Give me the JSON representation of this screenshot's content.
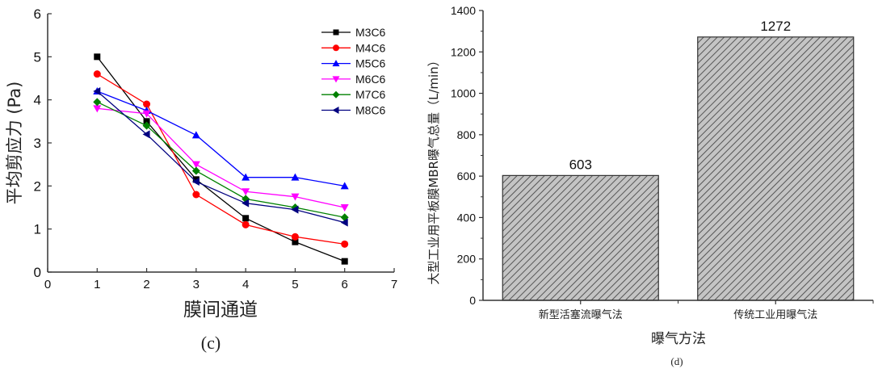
{
  "chart_data": [
    {
      "type": "line",
      "panel_label": "(c)",
      "title": "",
      "xlabel": "膜间通道",
      "ylabel": "平均剪应力 (Pa)",
      "xlim": [
        0,
        7
      ],
      "ylim": [
        0,
        6
      ],
      "xticks": [
        "0",
        "1",
        "2",
        "3",
        "4",
        "5",
        "6",
        "7"
      ],
      "yticks": [
        "0",
        "1",
        "2",
        "3",
        "4",
        "5",
        "6"
      ],
      "grid": false,
      "legend_position": "top-right",
      "x": [
        1,
        2,
        3,
        4,
        5,
        6
      ],
      "series": [
        {
          "name": "M3C6",
          "color": "#000000",
          "marker": "square",
          "values": [
            5.0,
            3.5,
            2.15,
            1.25,
            0.7,
            0.25
          ]
        },
        {
          "name": "M4C6",
          "color": "#ff0000",
          "marker": "circle",
          "values": [
            4.6,
            3.9,
            1.8,
            1.1,
            0.82,
            0.65
          ]
        },
        {
          "name": "M5C6",
          "color": "#0000ff",
          "marker": "triangle-up",
          "values": [
            4.2,
            3.75,
            3.18,
            2.2,
            2.2,
            2.0
          ]
        },
        {
          "name": "M6C6",
          "color": "#ff00ff",
          "marker": "triangle-down",
          "values": [
            3.8,
            3.68,
            2.5,
            1.87,
            1.75,
            1.5
          ]
        },
        {
          "name": "M7C6",
          "color": "#008000",
          "marker": "diamond",
          "values": [
            3.95,
            3.4,
            2.35,
            1.7,
            1.5,
            1.27
          ]
        },
        {
          "name": "M8C6",
          "color": "#000080",
          "marker": "triangle-left",
          "values": [
            4.2,
            3.2,
            2.1,
            1.6,
            1.45,
            1.15
          ]
        }
      ]
    },
    {
      "type": "bar",
      "panel_label": "(d)",
      "title": "",
      "xlabel": "曝气方法",
      "ylabel": "大型工业用平板膜MBR曝气总量（L/min）",
      "categories": [
        "新型活塞流曝气法",
        "传统工业用曝气法"
      ],
      "values": [
        603,
        1272
      ],
      "data_labels": [
        "603",
        "1272"
      ],
      "ylim": [
        0,
        1400
      ],
      "yticks": [
        "0",
        "200",
        "400",
        "600",
        "800",
        "1000",
        "1200",
        "1400"
      ],
      "grid": false,
      "bar_fill": "hatched-gray",
      "bar_color": "#b0b0b0"
    }
  ]
}
